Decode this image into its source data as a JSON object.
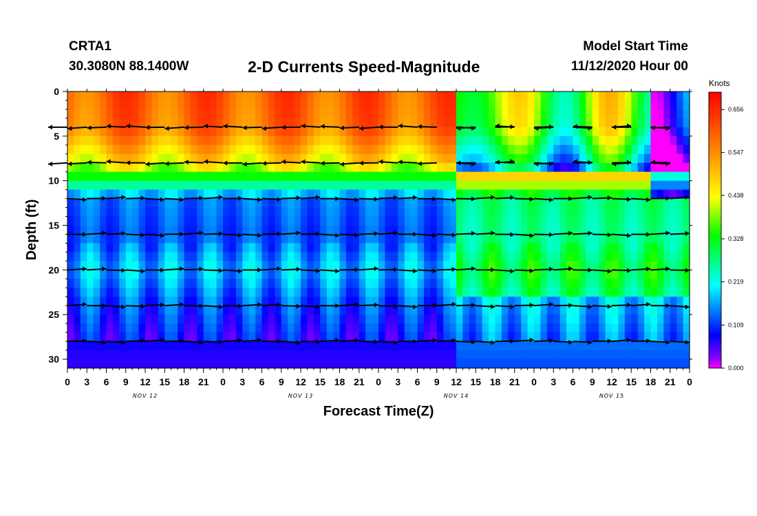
{
  "header": {
    "station_id": "CRTA1",
    "station_coords": "30.3080N 88.1400W",
    "title": "2-D Currents Speed-Magnitude",
    "start_label": "Model Start Time",
    "start_value": "11/12/2020 Hour 00"
  },
  "chart_data": {
    "type": "heatmap",
    "title": "2-D Currents Speed-Magnitude",
    "xlabel": "Forecast Time(Z)",
    "ylabel": "Depth (ft)",
    "x_range_hours": [
      0,
      96
    ],
    "y_range_ft": [
      0,
      31
    ],
    "x_tick_labels": [
      "0",
      "3",
      "6",
      "9",
      "12",
      "15",
      "18",
      "21",
      "0",
      "3",
      "6",
      "9",
      "12",
      "15",
      "18",
      "21",
      "0",
      "3",
      "6",
      "9",
      "12",
      "15",
      "18",
      "21",
      "0",
      "3",
      "6",
      "9",
      "12",
      "15",
      "18",
      "21",
      "0"
    ],
    "date_labels": [
      {
        "text": "NOV 12",
        "hour": 12
      },
      {
        "text": "NOV 13",
        "hour": 36
      },
      {
        "text": "NOV 14",
        "hour": 60
      },
      {
        "text": "NOV 15",
        "hour": 84
      }
    ],
    "y_ticks": [
      0,
      5,
      10,
      15,
      20,
      25,
      30
    ],
    "colorbar": {
      "unit": "Knots",
      "ticks": [
        "0.656",
        "0.547",
        "0.438",
        "0.328",
        "0.219",
        "0.109",
        "0.000"
      ],
      "range": [
        0,
        0.7
      ]
    },
    "depth_levels_ft": [
      4,
      8,
      12,
      16,
      20,
      24,
      28
    ],
    "speed_profile_knots": [
      {
        "depth": 0,
        "speed": 0.6
      },
      {
        "depth": 4,
        "speed": 0.58
      },
      {
        "depth": 8,
        "speed": 0.45
      },
      {
        "depth": 10,
        "speed": 0.3
      },
      {
        "depth": 12,
        "speed": 0.14
      },
      {
        "depth": 16,
        "speed": 0.12
      },
      {
        "depth": 20,
        "speed": 0.18
      },
      {
        "depth": 24,
        "speed": 0.12
      },
      {
        "depth": 28,
        "speed": 0.08
      },
      {
        "depth": 31,
        "speed": 0.06
      }
    ]
  }
}
